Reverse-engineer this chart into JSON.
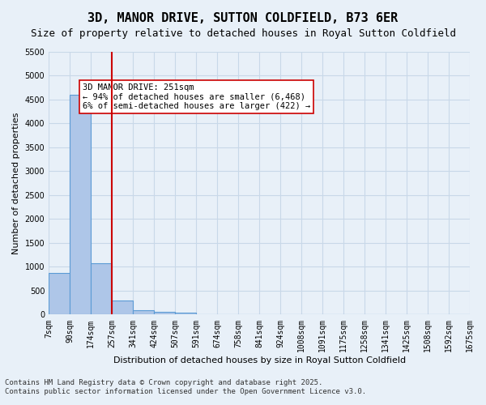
{
  "title": "3D, MANOR DRIVE, SUTTON COLDFIELD, B73 6ER",
  "subtitle": "Size of property relative to detached houses in Royal Sutton Coldfield",
  "xlabel": "Distribution of detached houses by size in Royal Sutton Coldfield",
  "ylabel": "Number of detached properties",
  "bar_values": [
    880,
    4600,
    1080,
    300,
    90,
    60,
    40,
    0,
    0,
    0,
    0,
    0,
    0,
    0,
    0,
    0,
    0,
    0,
    0,
    0
  ],
  "bin_labels": [
    "7sqm",
    "90sqm",
    "174sqm",
    "257sqm",
    "341sqm",
    "424sqm",
    "507sqm",
    "591sqm",
    "674sqm",
    "758sqm",
    "841sqm",
    "924sqm",
    "1008sqm",
    "1091sqm",
    "1175sqm",
    "1258sqm",
    "1341sqm",
    "1425sqm",
    "1508sqm",
    "1592sqm",
    "1675sqm"
  ],
  "bar_color": "#aec6e8",
  "bar_edge_color": "#5b9bd5",
  "grid_color": "#c8d8e8",
  "background_color": "#e8f0f8",
  "vline_x": 3,
  "vline_color": "#cc0000",
  "annotation_text": "3D MANOR DRIVE: 251sqm\n← 94% of detached houses are smaller (6,468)\n6% of semi-detached houses are larger (422) →",
  "annotation_box_color": "#ffffff",
  "annotation_edge_color": "#cc0000",
  "ylim": [
    0,
    5500
  ],
  "yticks": [
    0,
    500,
    1000,
    1500,
    2000,
    2500,
    3000,
    3500,
    4000,
    4500,
    5000,
    5500
  ],
  "footer_line1": "Contains HM Land Registry data © Crown copyright and database right 2025.",
  "footer_line2": "Contains public sector information licensed under the Open Government Licence v3.0.",
  "title_fontsize": 11,
  "subtitle_fontsize": 9,
  "axis_label_fontsize": 8,
  "tick_fontsize": 7,
  "annotation_fontsize": 7.5,
  "footer_fontsize": 6.5
}
